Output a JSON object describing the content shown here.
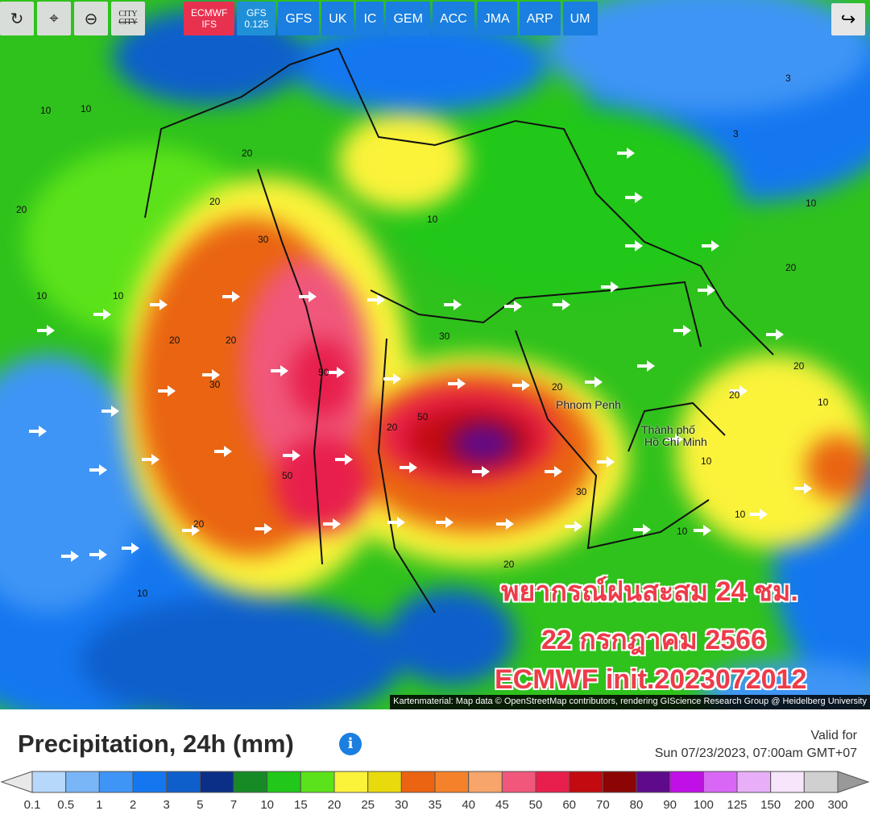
{
  "toolbar": {
    "refresh_icon": "refresh-icon",
    "location_icon": "map-pin-icon",
    "zoom_icon": "zoom-out-icon",
    "city_label": "CITY",
    "city_strike": "CITY"
  },
  "models": [
    {
      "label": "ECMWF",
      "sub": "IFS",
      "active": true
    },
    {
      "label": "GFS",
      "sub": "0.125"
    },
    {
      "label": "GFS"
    },
    {
      "label": "UK"
    },
    {
      "label": "IC"
    },
    {
      "label": "GEM"
    },
    {
      "label": "ACC"
    },
    {
      "label": "JMA"
    },
    {
      "label": "ARP"
    },
    {
      "label": "UM"
    }
  ],
  "share_icon": "share-icon",
  "map": {
    "places": [
      "Phnom Penh",
      "Thành phố",
      "Hồ Chí Minh"
    ],
    "contour_labels": [
      "10",
      "10",
      "20",
      "20",
      "20",
      "30",
      "20",
      "10",
      "10",
      "20",
      "30",
      "50",
      "50",
      "20",
      "30",
      "50",
      "30",
      "20",
      "20",
      "10",
      "10",
      "20",
      "20",
      "10",
      "3",
      "3",
      "10",
      "20",
      "10",
      "10",
      "20",
      "10"
    ],
    "overlay_line1": "พยากรณ์ฝนสะสม 24 ชม.",
    "overlay_line2": "22 กรกฎาคม 2566",
    "overlay_line3": "ECMWF init.2023072012",
    "attribution": "Kartenmaterial: Map data © OpenStreetMap contributors, rendering GIScience Research Group @ Heidelberg University"
  },
  "legend": {
    "title": "Precipitation, 24h (mm)",
    "info_icon": "info-icon",
    "valid_label": "Valid for",
    "valid_time": "Sun 07/23/2023, 07:00am GMT+07",
    "colors": [
      "#b6d8fb",
      "#79b6f7",
      "#3f95f5",
      "#1477f0",
      "#0e5fcb",
      "#0b2f86",
      "#168a25",
      "#21c719",
      "#5ce21a",
      "#fbf23a",
      "#e8da0c",
      "#ea6411",
      "#f5822a",
      "#f7a56b",
      "#f0577a",
      "#e81f4c",
      "#c20a10",
      "#8c0404",
      "#5e0a8a",
      "#c10fe8",
      "#d967f6",
      "#e8aff8",
      "#f7e5fb",
      "#d0d0d0"
    ],
    "ticks": [
      "0.1",
      "0.5",
      "1",
      "2",
      "3",
      "5",
      "7",
      "10",
      "15",
      "20",
      "25",
      "30",
      "35",
      "40",
      "45",
      "50",
      "60",
      "70",
      "80",
      "90",
      "100",
      "125",
      "150",
      "200",
      "300"
    ]
  }
}
